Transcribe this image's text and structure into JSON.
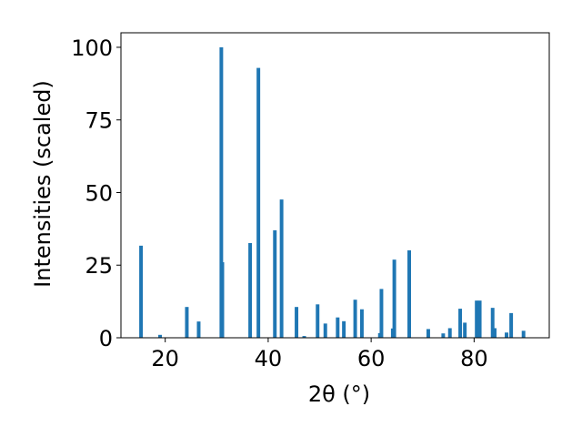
{
  "chart_data": {
    "type": "bar",
    "title": "",
    "xlabel": "2θ (°)",
    "ylabel": "Intensities (scaled)",
    "xlim": [
      11.4,
      94.6
    ],
    "ylim": [
      0,
      105
    ],
    "xticks": [
      20,
      40,
      60,
      80
    ],
    "yticks": [
      0,
      25,
      50,
      75,
      100
    ],
    "grid": false,
    "bar_color": "#1f77b4",
    "bar_width": 0.7,
    "x": [
      15.3,
      19.0,
      24.2,
      26.5,
      30.9,
      31.1,
      36.5,
      38.1,
      41.3,
      42.6,
      45.5,
      47.0,
      49.6,
      51.1,
      53.5,
      54.7,
      56.9,
      58.2,
      61.7,
      62.0,
      64.2,
      64.5,
      67.4,
      71.1,
      74.0,
      75.3,
      77.3,
      78.2,
      80.5,
      81.1,
      83.6,
      84.0,
      86.3,
      87.2,
      89.6
    ],
    "values": [
      31.7,
      1.0,
      10.6,
      5.6,
      100.0,
      26.0,
      32.6,
      92.9,
      37.0,
      47.6,
      10.6,
      0.6,
      11.5,
      4.9,
      7.0,
      5.7,
      13.1,
      9.8,
      1.6,
      16.8,
      3.2,
      26.9,
      30.1,
      3.0,
      1.5,
      3.3,
      10.0,
      5.2,
      12.8,
      12.8,
      10.3,
      3.3,
      1.8,
      8.5,
      2.4
    ]
  }
}
